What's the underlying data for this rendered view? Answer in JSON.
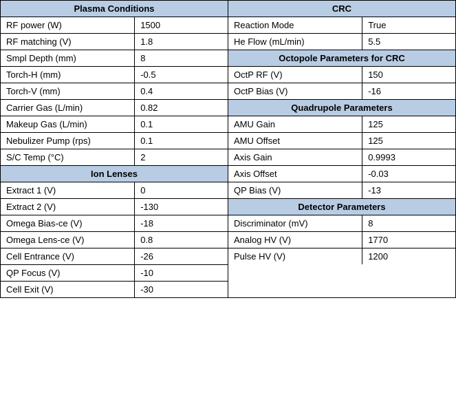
{
  "colors": {
    "header_bg": "#b8cce4",
    "border": "#000000",
    "text": "#000000"
  },
  "left": {
    "plasma": {
      "title": "Plasma Conditions",
      "rows": [
        {
          "l": "RF power (W)",
          "r": "1500"
        },
        {
          "l": "RF matching (V)",
          "r": "1.8"
        },
        {
          "l": "Smpl Depth (mm)",
          "r": "8"
        },
        {
          "l": "Torch-H (mm)",
          "r": "-0.5"
        },
        {
          "l": "Torch-V (mm)",
          "r": "0.4"
        },
        {
          "l": "Carrier Gas (L/min)",
          "r": "0.82"
        },
        {
          "l": "Makeup Gas (L/min)",
          "r": "0.1"
        },
        {
          "l": "Nebulizer Pump (rps)",
          "r": "0.1"
        },
        {
          "l": "S/C Temp (°C)",
          "r": "2"
        }
      ]
    },
    "ion": {
      "title": "Ion Lenses",
      "rows": [
        {
          "l": "Extract 1 (V)",
          "r": "0"
        },
        {
          "l": "Extract 2 (V)",
          "r": "-130"
        },
        {
          "l": "Omega Bias-ce (V)",
          "r": "-18"
        },
        {
          "l": "Omega Lens-ce (V)",
          "r": "0.8"
        },
        {
          "l": "Cell Entrance (V)",
          "r": "-26"
        },
        {
          "l": "QP Focus (V)",
          "r": "-10"
        },
        {
          "l": "Cell Exit (V)",
          "r": "-30"
        }
      ]
    }
  },
  "right": {
    "crc": {
      "title": "CRC",
      "rows": [
        {
          "l": "Reaction Mode",
          "r": "True"
        },
        {
          "l": "He Flow (mL/min)",
          "r": "5.5"
        }
      ]
    },
    "octo": {
      "title": "Octopole Parameters for CRC",
      "rows": [
        {
          "l": "OctP RF (V)",
          "r": "150"
        },
        {
          "l": "OctP Bias (V)",
          "r": "-16"
        }
      ]
    },
    "quad": {
      "title": "Quadrupole Parameters",
      "rows": [
        {
          "l": "AMU Gain",
          "r": "125"
        },
        {
          "l": "AMU Offset",
          "r": "125"
        },
        {
          "l": "Axis Gain",
          "r": "0.9993"
        },
        {
          "l": "Axis Offset",
          "r": "-0.03"
        },
        {
          "l": "QP Bias (V)",
          "r": "-13"
        }
      ]
    },
    "det": {
      "title": "Detector Parameters",
      "rows": [
        {
          "l": "Discriminator (mV)",
          "r": "8"
        },
        {
          "l": "Analog HV (V)",
          "r": "1770"
        },
        {
          "l": "Pulse HV (V)",
          "r": "1200"
        }
      ]
    }
  }
}
